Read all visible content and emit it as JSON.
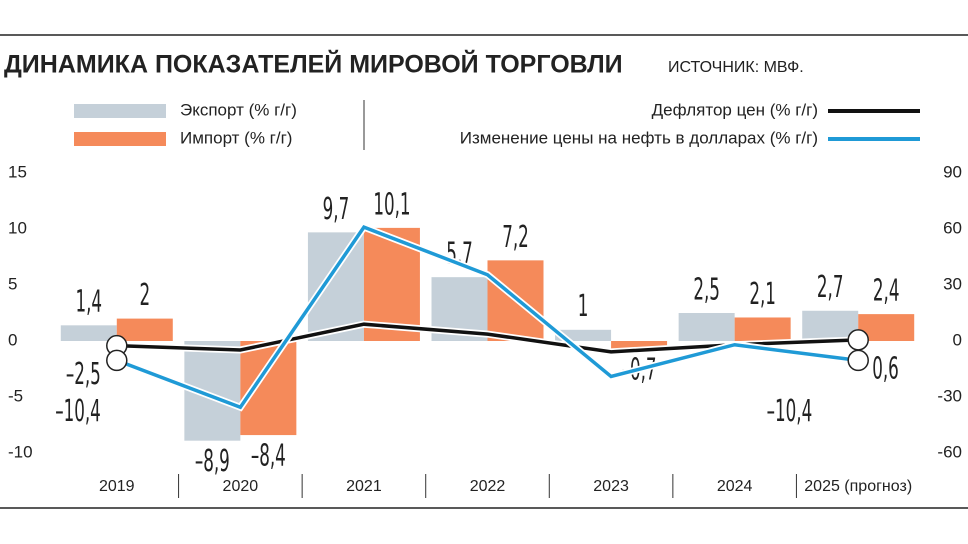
{
  "chart_data": {
    "type": "bar-line",
    "title": "ДИНАМИКА ПОКАЗАТЕЛЕЙ МИРОВОЙ ТОРГОВЛИ",
    "source": "ИСТОЧНИК: МВФ.",
    "categories": [
      "2019",
      "2020",
      "2021",
      "2022",
      "2023",
      "2024",
      "2025 (прогноз)"
    ],
    "series": [
      {
        "name": "Экспорт  (% г/г)",
        "color": "#c5d0d9",
        "kind": "bar",
        "values": [
          1.4,
          -8.9,
          9.7,
          5.7,
          1,
          2.5,
          2.7
        ],
        "value_labels": [
          "1,4",
          "–8,9",
          "9,7",
          "5,7",
          "1",
          "2,5",
          "2,7"
        ]
      },
      {
        "name": "Импорт  (% г/г)",
        "color": "#f58a5a",
        "kind": "bar",
        "values": [
          2,
          -8.4,
          10.1,
          7.2,
          -0.7,
          2.1,
          2.4
        ],
        "value_labels": [
          "2",
          "–8,4",
          "10,1",
          "7,2",
          "–0,7",
          "2,1",
          "2,4"
        ]
      },
      {
        "name": "Дефлятор цен (% г/г)",
        "color": "#111111",
        "kind": "line",
        "axis": "y2",
        "values": [
          -2.5,
          -4.8,
          9,
          3.7,
          -5.8,
          -2,
          0.6
        ],
        "value_labels": [
          "–2,5",
          null,
          null,
          null,
          null,
          null,
          "0,6"
        ]
      },
      {
        "name": "Изменение цены на нефть в долларах (% г/г)",
        "color": "#1f9ad6",
        "kind": "line",
        "axis": "y2",
        "values": [
          -10.4,
          -35.5,
          61,
          35.5,
          -19,
          -2,
          -10.4
        ],
        "value_labels": [
          "–10,4",
          null,
          null,
          null,
          null,
          null,
          "–10,4"
        ]
      }
    ],
    "ylim": [
      -10,
      15
    ],
    "yticks": [
      -10,
      -5,
      0,
      5,
      10,
      15
    ],
    "y2lim": [
      -60,
      90
    ],
    "y2ticks": [
      -60,
      -30,
      0,
      30,
      60,
      90
    ]
  }
}
